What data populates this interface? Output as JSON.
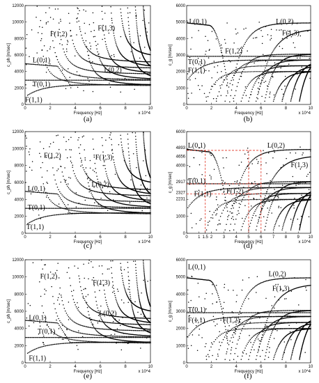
{
  "colors": {
    "points": "#000000",
    "reference_lines": "#e03020",
    "frame": "#000000"
  },
  "chart_data": [
    {
      "type": "scatter",
      "panel": "(a)",
      "xlabel": "Frequency [Hz]",
      "ylabel": "c_ph [m/sec]",
      "x_multiplier": "x 10^4",
      "xlim": [
        0,
        10
      ],
      "ylim": [
        0,
        12000
      ],
      "xticks": [
        0,
        2,
        4,
        6,
        8,
        10
      ],
      "yticks": [
        0,
        2000,
        4000,
        6000,
        8000,
        10000,
        12000
      ],
      "mode_labels": [
        {
          "text": "F(1,3)",
          "x": 5.8,
          "y": 9000
        },
        {
          "text": "F(1,2)",
          "x": 2.0,
          "y": 8300
        },
        {
          "text": "L(0,1)",
          "x": 0.6,
          "y": 5100
        },
        {
          "text": "L(0,2)",
          "x": 6.3,
          "y": 3950
        },
        {
          "text": "T(0,1)",
          "x": 0.6,
          "y": 2200
        },
        {
          "text": "F(1,1)",
          "x": 0.0,
          "y": 300
        }
      ]
    },
    {
      "type": "scatter",
      "panel": "(b)",
      "xlabel": "Frequency [Hz]",
      "ylabel": "c_g [m/sec]",
      "x_multiplier": "x 10^4",
      "xlim": [
        0,
        10
      ],
      "ylim": [
        0,
        6000
      ],
      "xticks": [
        0,
        2,
        4,
        6,
        8,
        10
      ],
      "yticks": [
        0,
        1000,
        2000,
        3000,
        4000,
        5000,
        6000
      ],
      "mode_labels": [
        {
          "text": "L(0,1)",
          "x": 0.2,
          "y": 4900
        },
        {
          "text": "L(0,2)",
          "x": 7.2,
          "y": 4900
        },
        {
          "text": "F(1,3)",
          "x": 7.7,
          "y": 4200
        },
        {
          "text": "F(1,2)",
          "x": 3.1,
          "y": 3100
        },
        {
          "text": "T(0,1)",
          "x": 0.1,
          "y": 2450
        },
        {
          "text": "F(1,1)",
          "x": 0.1,
          "y": 1950
        }
      ]
    },
    {
      "type": "scatter",
      "panel": "(c)",
      "xlabel": "Frequency [Hz]",
      "ylabel": "c_ph [m/sec]",
      "x_multiplier": "x 10^4",
      "xlim": [
        0,
        10
      ],
      "ylim": [
        0,
        12000
      ],
      "xticks": [
        0,
        2,
        4,
        6,
        8,
        10
      ],
      "yticks": [
        0,
        2000,
        4000,
        6000,
        8000,
        10000,
        12000
      ],
      "mode_labels": [
        {
          "text": "F(1,2)",
          "x": 1.5,
          "y": 8900
        },
        {
          "text": "F(1,3)",
          "x": 5.6,
          "y": 8700
        },
        {
          "text": "L(0,2)",
          "x": 5.3,
          "y": 5500
        },
        {
          "text": "L(0,1)",
          "x": 0.2,
          "y": 5000
        },
        {
          "text": "T(0,1)",
          "x": 0.2,
          "y": 2800
        },
        {
          "text": "T(1,1)",
          "x": 0.1,
          "y": 500
        }
      ]
    },
    {
      "type": "scatter",
      "panel": "(d)",
      "xlabel": "Frequency [Hz]",
      "ylabel": "c_g [m/sec]",
      "x_multiplier": "x 10^4",
      "xlim": [
        0,
        10
      ],
      "ylim": [
        0,
        6000
      ],
      "xticks": [
        0,
        1,
        1.5,
        2,
        3,
        4,
        5,
        6,
        7,
        8,
        9,
        10
      ],
      "yticks": [
        0,
        1000,
        2000,
        3000,
        4000,
        5000,
        6000
      ],
      "reference_values_y": [
        4893,
        4656,
        2917,
        2327,
        2231
      ],
      "reference_values_x": [
        1.5,
        5,
        6
      ],
      "mode_labels": [
        {
          "text": "L(0,1)",
          "x": 0.1,
          "y": 5050
        },
        {
          "text": "L(0,2)",
          "x": 6.5,
          "y": 5050
        },
        {
          "text": "F(1,3)",
          "x": 8.4,
          "y": 3900
        },
        {
          "text": "T(0,1)",
          "x": 0.1,
          "y": 2950
        },
        {
          "text": "F(1,1)",
          "x": 0.6,
          "y": 2200
        },
        {
          "text": "F(1,2)",
          "x": 3.2,
          "y": 2350
        }
      ]
    },
    {
      "type": "scatter",
      "panel": "(e)",
      "xlabel": "Frequency [Hz]",
      "ylabel": "c_ph [m/sec]",
      "x_multiplier": "x 10^4",
      "xlim": [
        0,
        10
      ],
      "ylim": [
        0,
        12000
      ],
      "xticks": [
        0,
        2,
        4,
        6,
        8,
        10
      ],
      "yticks": [
        0,
        2000,
        4000,
        6000,
        8000,
        10000,
        12000
      ],
      "mode_labels": [
        {
          "text": "F(1,2)",
          "x": 1.2,
          "y": 9800
        },
        {
          "text": "F(1,3)",
          "x": 5.4,
          "y": 9100
        },
        {
          "text": "L(0,1)",
          "x": 0.3,
          "y": 5000
        },
        {
          "text": "L(0,2)",
          "x": 5.9,
          "y": 5500
        },
        {
          "text": "T(0,1)",
          "x": 1.0,
          "y": 3400
        },
        {
          "text": "F(1,1)",
          "x": 0.3,
          "y": 300
        }
      ]
    },
    {
      "type": "scatter",
      "panel": "(f)",
      "xlabel": "Frequency [Hz]",
      "ylabel": "c_g [m/sec]",
      "x_multiplier": "x 10^4",
      "xlim": [
        0,
        10
      ],
      "ylim": [
        0,
        6000
      ],
      "xticks": [
        0,
        2,
        4,
        6,
        8,
        10
      ],
      "yticks": [
        0,
        1000,
        2000,
        3000,
        4000,
        5000,
        6000
      ],
      "mode_labels": [
        {
          "text": "L(0,1)",
          "x": 0.1,
          "y": 5450
        },
        {
          "text": "L(0,2)",
          "x": 6.6,
          "y": 5050
        },
        {
          "text": "F(1,3)",
          "x": 6.9,
          "y": 4200
        },
        {
          "text": "T(0,1)",
          "x": 0.1,
          "y": 2950
        },
        {
          "text": "F(1,1)",
          "x": 0.1,
          "y": 2350
        },
        {
          "text": "F(1,2)",
          "x": 2.9,
          "y": 2350
        }
      ]
    }
  ]
}
